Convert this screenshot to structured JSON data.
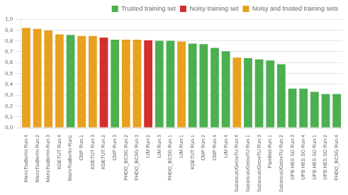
{
  "chart_data": {
    "type": "bar",
    "categories": [
      "MarioTsaBerlin Run 4",
      "MarioTsaBerlin Run 2",
      "MarioTsaBerlin Run 3",
      "KDETUT Run 4",
      "MarioTsaBerlin Run1",
      "CMP Run 1",
      "KDETUT Run 3",
      "KDETUT Run 2",
      "CMP Run 3",
      "FHDO_BCSG Run 2",
      "FHDO_BCSG Run 3",
      "LIM Run 2",
      "LIM Run 3",
      "FHDO_BCSG Run 1",
      "LIM Run 1",
      "KDETUT Run 1",
      "CMP Run 2",
      "CMP Run 4",
      "LIM Run 4",
      "SabancuUGebwTU Run 4",
      "SabancuUGebwTU Run 1",
      "SabancuUGebwTU Run 3",
      "PlantNet Run 1",
      "SabancuUGebwTU Run 2",
      "UPB HES SO Run 3",
      "UPB HES SO Run 4",
      "UPB HES SO Run 1",
      "UPB HES SO Run 2",
      "FHDO_BCSG Run 4"
    ],
    "series": [
      {
        "name": "Trusted training set",
        "color": "#4CAF50",
        "values": [
          null,
          null,
          null,
          null,
          0.855,
          null,
          null,
          null,
          0.81,
          null,
          null,
          null,
          0.8,
          0.8,
          null,
          0.775,
          0.77,
          0.735,
          0.705,
          null,
          0.64,
          0.63,
          0.62,
          0.585,
          0.36,
          0.36,
          0.33,
          0.31,
          0.31
        ]
      },
      {
        "name": "Noisy training set",
        "color": "#D32F2F",
        "values": [
          null,
          null,
          null,
          null,
          null,
          null,
          null,
          0.83,
          null,
          null,
          null,
          0.805,
          null,
          null,
          null,
          null,
          null,
          null,
          null,
          null,
          null,
          null,
          null,
          null,
          null,
          null,
          null,
          null,
          null
        ]
      },
      {
        "name": "Noisy and trusted training sets",
        "color": "#E8A020",
        "values": [
          0.92,
          0.91,
          0.895,
          0.86,
          null,
          0.845,
          0.845,
          null,
          null,
          0.81,
          0.81,
          null,
          null,
          null,
          0.795,
          null,
          null,
          null,
          null,
          0.645,
          null,
          null,
          null,
          null,
          null,
          null,
          null,
          null,
          null
        ]
      }
    ],
    "ylim": [
      0,
      1.0
    ],
    "yticks": [
      {
        "value": 0.0,
        "label": "0,0"
      },
      {
        "value": 0.1,
        "label": "0,1"
      },
      {
        "value": 0.2,
        "label": "0,2"
      },
      {
        "value": 0.3,
        "label": "0,3"
      },
      {
        "value": 0.4,
        "label": "0,4"
      },
      {
        "value": 0.5,
        "label": "0,5"
      },
      {
        "value": 0.6,
        "label": "0,6"
      },
      {
        "value": 0.7,
        "label": "0,7"
      },
      {
        "value": 0.8,
        "label": "0,8"
      },
      {
        "value": 0.9,
        "label": "0,9"
      },
      {
        "value": 1.0,
        "label": "1,0"
      }
    ],
    "grid": true,
    "legend": "upper right"
  }
}
